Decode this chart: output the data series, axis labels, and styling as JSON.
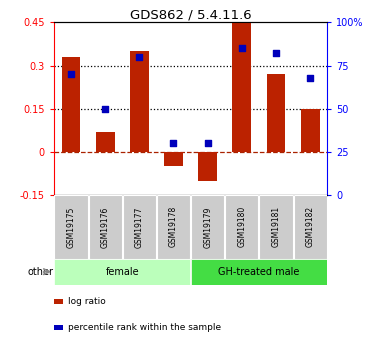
{
  "title": "GDS862 / 5.4.11.6",
  "samples": [
    "GSM19175",
    "GSM19176",
    "GSM19177",
    "GSM19178",
    "GSM19179",
    "GSM19180",
    "GSM19181",
    "GSM19182"
  ],
  "log_ratios": [
    0.33,
    0.07,
    0.35,
    -0.05,
    -0.1,
    0.46,
    0.27,
    0.15
  ],
  "percentile_ranks": [
    70,
    50,
    80,
    30,
    30,
    85,
    82,
    68
  ],
  "groups": [
    {
      "label": "female",
      "indices": [
        0,
        1,
        2,
        3
      ],
      "color": "#bbffbb"
    },
    {
      "label": "GH-treated male",
      "indices": [
        4,
        5,
        6,
        7
      ],
      "color": "#44dd44"
    }
  ],
  "bar_color": "#bb2200",
  "dot_color": "#0000bb",
  "ylim_left": [
    -0.15,
    0.45
  ],
  "ylim_right": [
    0,
    100
  ],
  "yticks_left": [
    -0.15,
    0.0,
    0.15,
    0.3,
    0.45
  ],
  "yticks_right": [
    0,
    25,
    50,
    75,
    100
  ],
  "ytick_labels_left": [
    "-0.15",
    "0",
    "0.15",
    "0.3",
    "0.45"
  ],
  "ytick_labels_right": [
    "0",
    "25",
    "50",
    "75",
    "100%"
  ],
  "hlines": [
    0.15,
    0.3
  ],
  "zero_line": 0.0,
  "bg_color": "#ffffff",
  "plot_bg": "#ffffff",
  "legend_items": [
    {
      "label": "log ratio",
      "color": "#bb2200"
    },
    {
      "label": "percentile rank within the sample",
      "color": "#0000bb"
    }
  ],
  "other_label": "other"
}
